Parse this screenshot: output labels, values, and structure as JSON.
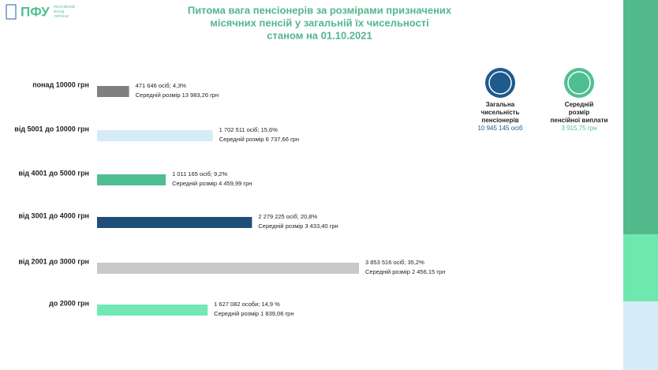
{
  "logo": {
    "mark": "ПФУ",
    "text": [
      "ПЕНСІЙНИЙ",
      "ФОНД",
      "УКРАЇНИ"
    ]
  },
  "chart_data": {
    "type": "bar",
    "orientation": "horizontal",
    "title": [
      "Питома вага пенсіонерів за розмірами призначених",
      "місячних пенсій у загальній їх чисельності",
      "станом на 01.10.2021"
    ],
    "categories": [
      "понад 10000 грн",
      "від 5001 до 10000 грн",
      "від 4001 до 5000 грн",
      "від 3001 до 4000 грн",
      "від 2001 до 3000 грн",
      "до 2000 грн"
    ],
    "values": [
      471646,
      1702511,
      1011165,
      2279225,
      3853516,
      1627082
    ],
    "value_labels": [
      "471 646 осіб;  4,3%",
      "1 702 511 осіб; 15,6%",
      "1 011 165 осіб; 9,2%",
      "2 279 225 осіб; 20,8%",
      "3 853 516 осіб; 35,2%",
      "1 627 082 особи; 14,9 %"
    ],
    "average_labels": [
      "Середній розмір 13 983,26 грн",
      "Середній розмір 6 737,66 грн",
      "Середній розмір 4 459,99 грн",
      "Середній розмір 3 433,40 грн",
      "Середній розмір 2 456,15 грн",
      "Середній розмір 1 839,06 грн"
    ],
    "colors": [
      "#7f7f7f",
      "#d5ebf8",
      "#4fbf92",
      "#1f4e79",
      "#c9c9c9",
      "#72e8b4"
    ]
  },
  "kpis": [
    {
      "label": [
        "Загальна",
        "чисельність",
        "пенсіонерів"
      ],
      "value": "10 945 145 осіб",
      "color": "#1e5a8c"
    },
    {
      "label": [
        "Середній",
        "розмір",
        "пенсійної виплати"
      ],
      "value": "3 915,75 грн",
      "color": "#4fbf92"
    }
  ]
}
